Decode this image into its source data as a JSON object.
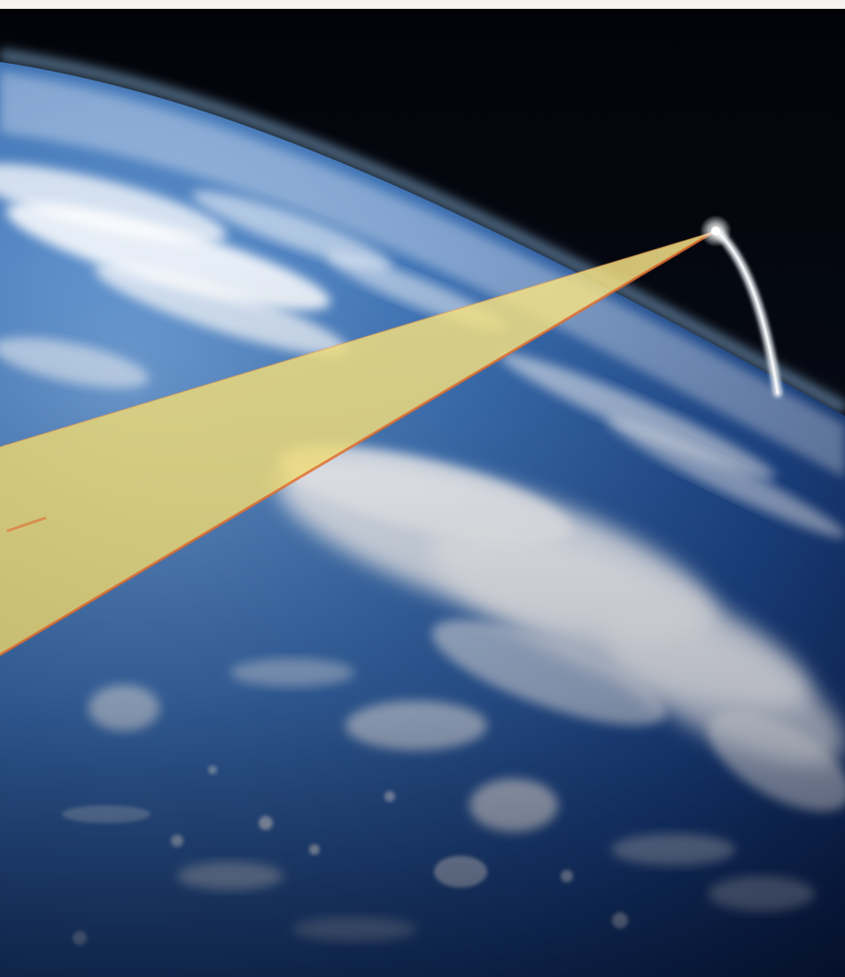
{
  "scene": {
    "description_tags": [
      "earth-limb",
      "space-background",
      "cloud-cover",
      "missile-trail",
      "sensor-beam"
    ],
    "colors": {
      "space": "#05080f",
      "ocean_dark": "#0d2350",
      "ocean": "#2a5a98",
      "ocean_light": "#5f8cc4",
      "atmosphere": "#9fc7ee",
      "cloud": "#ffffff",
      "beam_fill": "#f0dc78",
      "beam_edge": "#e06a2a",
      "trail": "#dfe6ec",
      "glow": "#ffffff",
      "page_margin": "#f4f2ee"
    }
  }
}
